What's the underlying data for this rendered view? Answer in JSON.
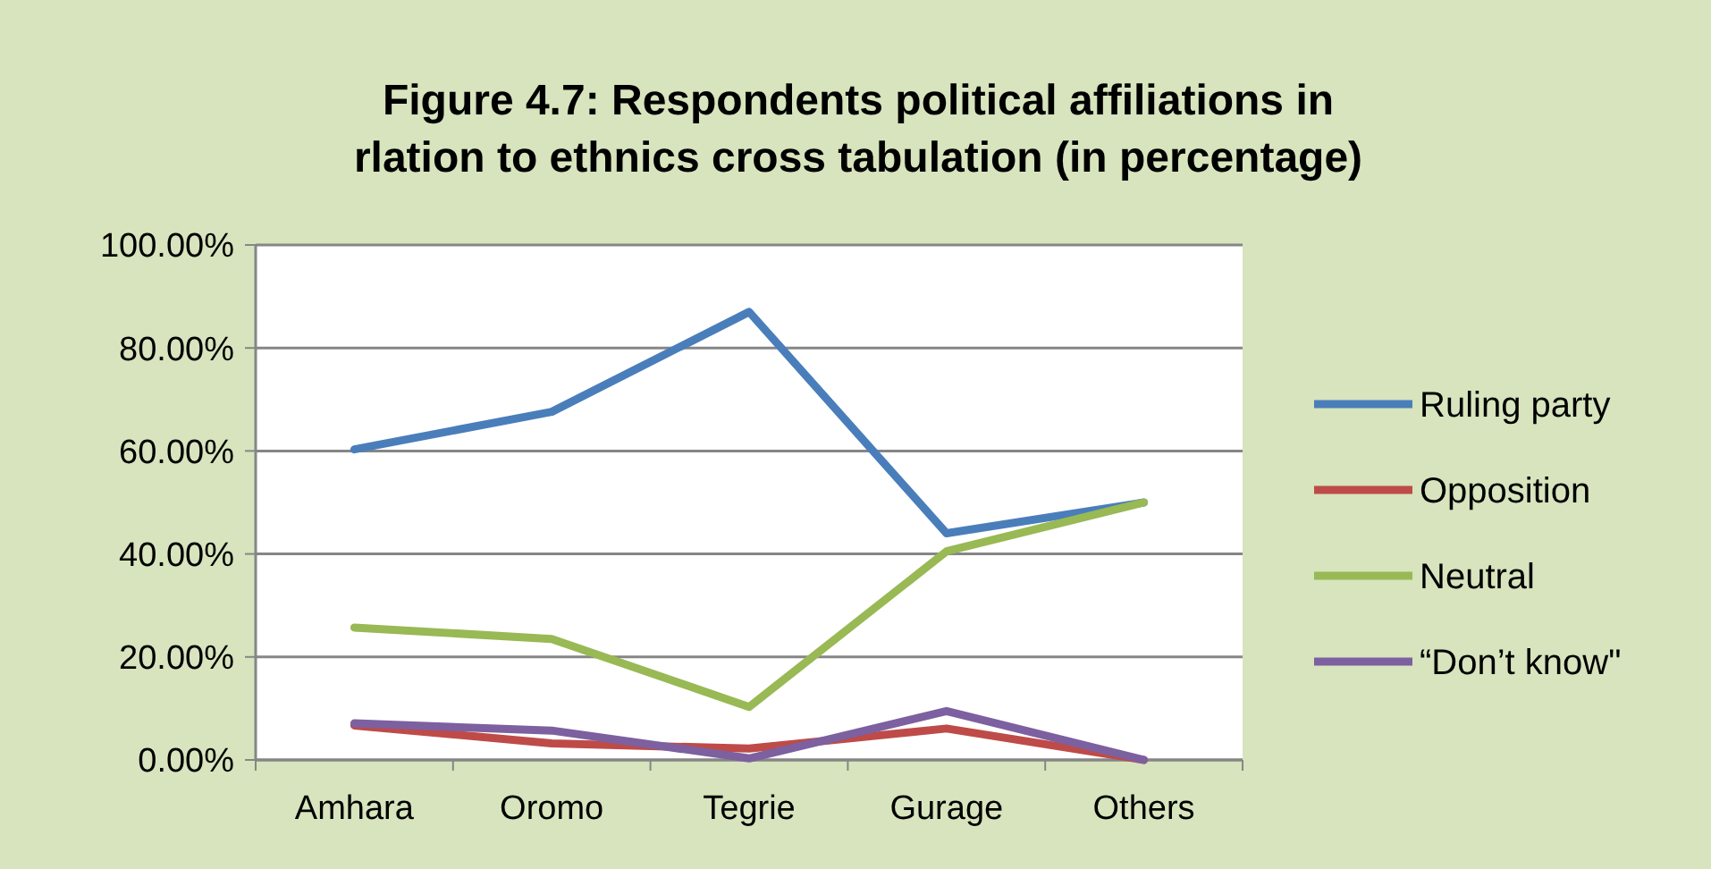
{
  "chart_data": {
    "type": "line",
    "title": "Figure 4.7: Respondents political affiliations in rlation to ethnics cross tabulation (in percentage)",
    "categories": [
      "Amhara",
      "Oromo",
      "Tegrie",
      "Gurage",
      "Others"
    ],
    "series": [
      {
        "name": "Ruling party",
        "color": "#4a7ebb",
        "values": [
          60.3,
          67.6,
          87,
          44,
          50
        ]
      },
      {
        "name": "Opposition",
        "color": "#be4b48",
        "values": [
          6.7,
          3.2,
          2.2,
          6.1,
          0
        ]
      },
      {
        "name": "Neutral",
        "color": "#98b954",
        "values": [
          25.7,
          23.5,
          10.3,
          40.5,
          50
        ]
      },
      {
        "name": "“Don’t know\"",
        "color": "#7d60a0",
        "values": [
          7.1,
          5.7,
          0.3,
          9.5,
          0
        ]
      }
    ],
    "ylim": [
      0,
      100
    ],
    "yticks": [
      {
        "value": 0,
        "label": "0.00%"
      },
      {
        "value": 20,
        "label": "20.00%"
      },
      {
        "value": 40,
        "label": "40.00%"
      },
      {
        "value": 60,
        "label": "60.00%"
      },
      {
        "value": 80,
        "label": "80.00%"
      },
      {
        "value": 100,
        "label": "100.00%"
      }
    ],
    "grid": "y",
    "legend": "right",
    "marker": "none",
    "line_style": "solid"
  }
}
